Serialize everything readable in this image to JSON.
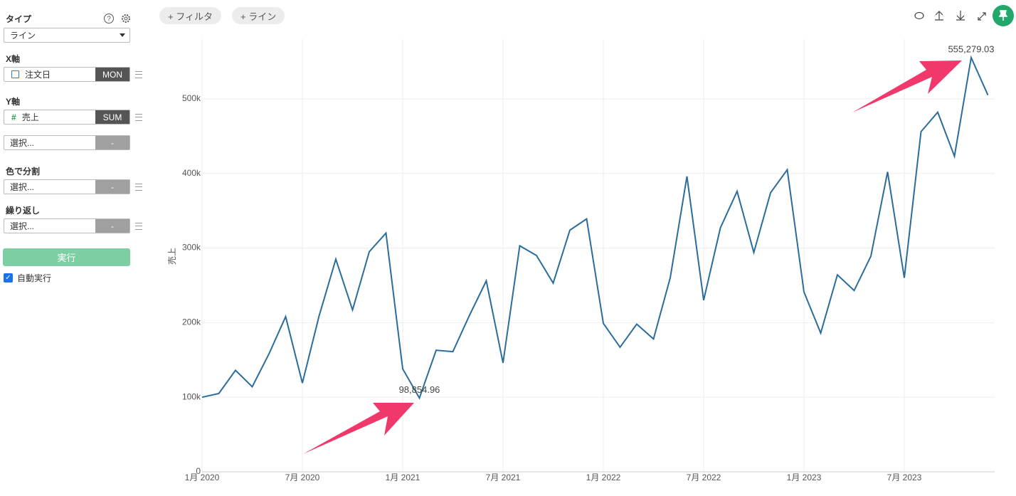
{
  "sidebar": {
    "type_label": "タイプ",
    "type_value": "ライン",
    "x_axis": {
      "label": "X軸",
      "field": "注文日",
      "agg": "MON"
    },
    "y_axis": {
      "label": "Y軸",
      "field": "売上",
      "agg": "SUM"
    },
    "extra": {
      "placeholder": "選択...",
      "agg": "-"
    },
    "color_split": {
      "label": "色で分割",
      "placeholder": "選択...",
      "agg": "-"
    },
    "repeat": {
      "label": "繰り返し",
      "placeholder": "選択...",
      "agg": "-"
    },
    "run": "実行",
    "auto_run": "自動実行"
  },
  "toolbar": {
    "filter": "+ フィルタ",
    "line": "+ ライン"
  },
  "chart_data": {
    "type": "line",
    "y_label": "売上",
    "color": "#2a6d9c",
    "grid": true,
    "categories": [
      "1月 2020",
      null,
      null,
      null,
      null,
      null,
      "7月 2020",
      null,
      null,
      null,
      null,
      null,
      "1月 2021",
      null,
      null,
      null,
      null,
      null,
      "7月 2021",
      null,
      null,
      null,
      null,
      null,
      "1月 2022",
      null,
      null,
      null,
      null,
      null,
      "7月 2022",
      null,
      null,
      null,
      null,
      null,
      "1月 2023",
      null,
      null,
      null,
      null,
      null,
      "7月 2023",
      null,
      null,
      null,
      null,
      null
    ],
    "values": [
      100000,
      105000,
      136000,
      114000,
      158000,
      208000,
      119000,
      209000,
      285000,
      217000,
      295000,
      320000,
      138000,
      98854.96,
      163000,
      161000,
      210000,
      256000,
      146000,
      303000,
      290000,
      253000,
      324000,
      339000,
      199000,
      167000,
      198000,
      178000,
      260000,
      396000,
      230000,
      327000,
      376000,
      294000,
      374000,
      405000,
      241000,
      186000,
      264000,
      243000,
      289000,
      402000,
      260000,
      456000,
      482000,
      423000,
      555279.03,
      505000
    ],
    "value_labels": [
      null,
      null,
      null,
      null,
      null,
      null,
      null,
      null,
      null,
      null,
      null,
      null,
      null,
      "98,854.96",
      null,
      null,
      null,
      null,
      null,
      null,
      null,
      null,
      null,
      null,
      null,
      null,
      null,
      null,
      null,
      null,
      null,
      null,
      null,
      null,
      null,
      null,
      null,
      null,
      null,
      null,
      null,
      null,
      null,
      null,
      null,
      null,
      "555,279.03",
      null
    ],
    "ylim": [
      0,
      580000
    ],
    "yticks": [
      0,
      {
        "value": 100000,
        "label": "100k"
      },
      {
        "value": 200000,
        "label": "200k"
      },
      {
        "value": 300000,
        "label": "300k"
      },
      {
        "value": 400000,
        "label": "400k"
      },
      {
        "value": 500000,
        "label": "500k"
      }
    ]
  }
}
